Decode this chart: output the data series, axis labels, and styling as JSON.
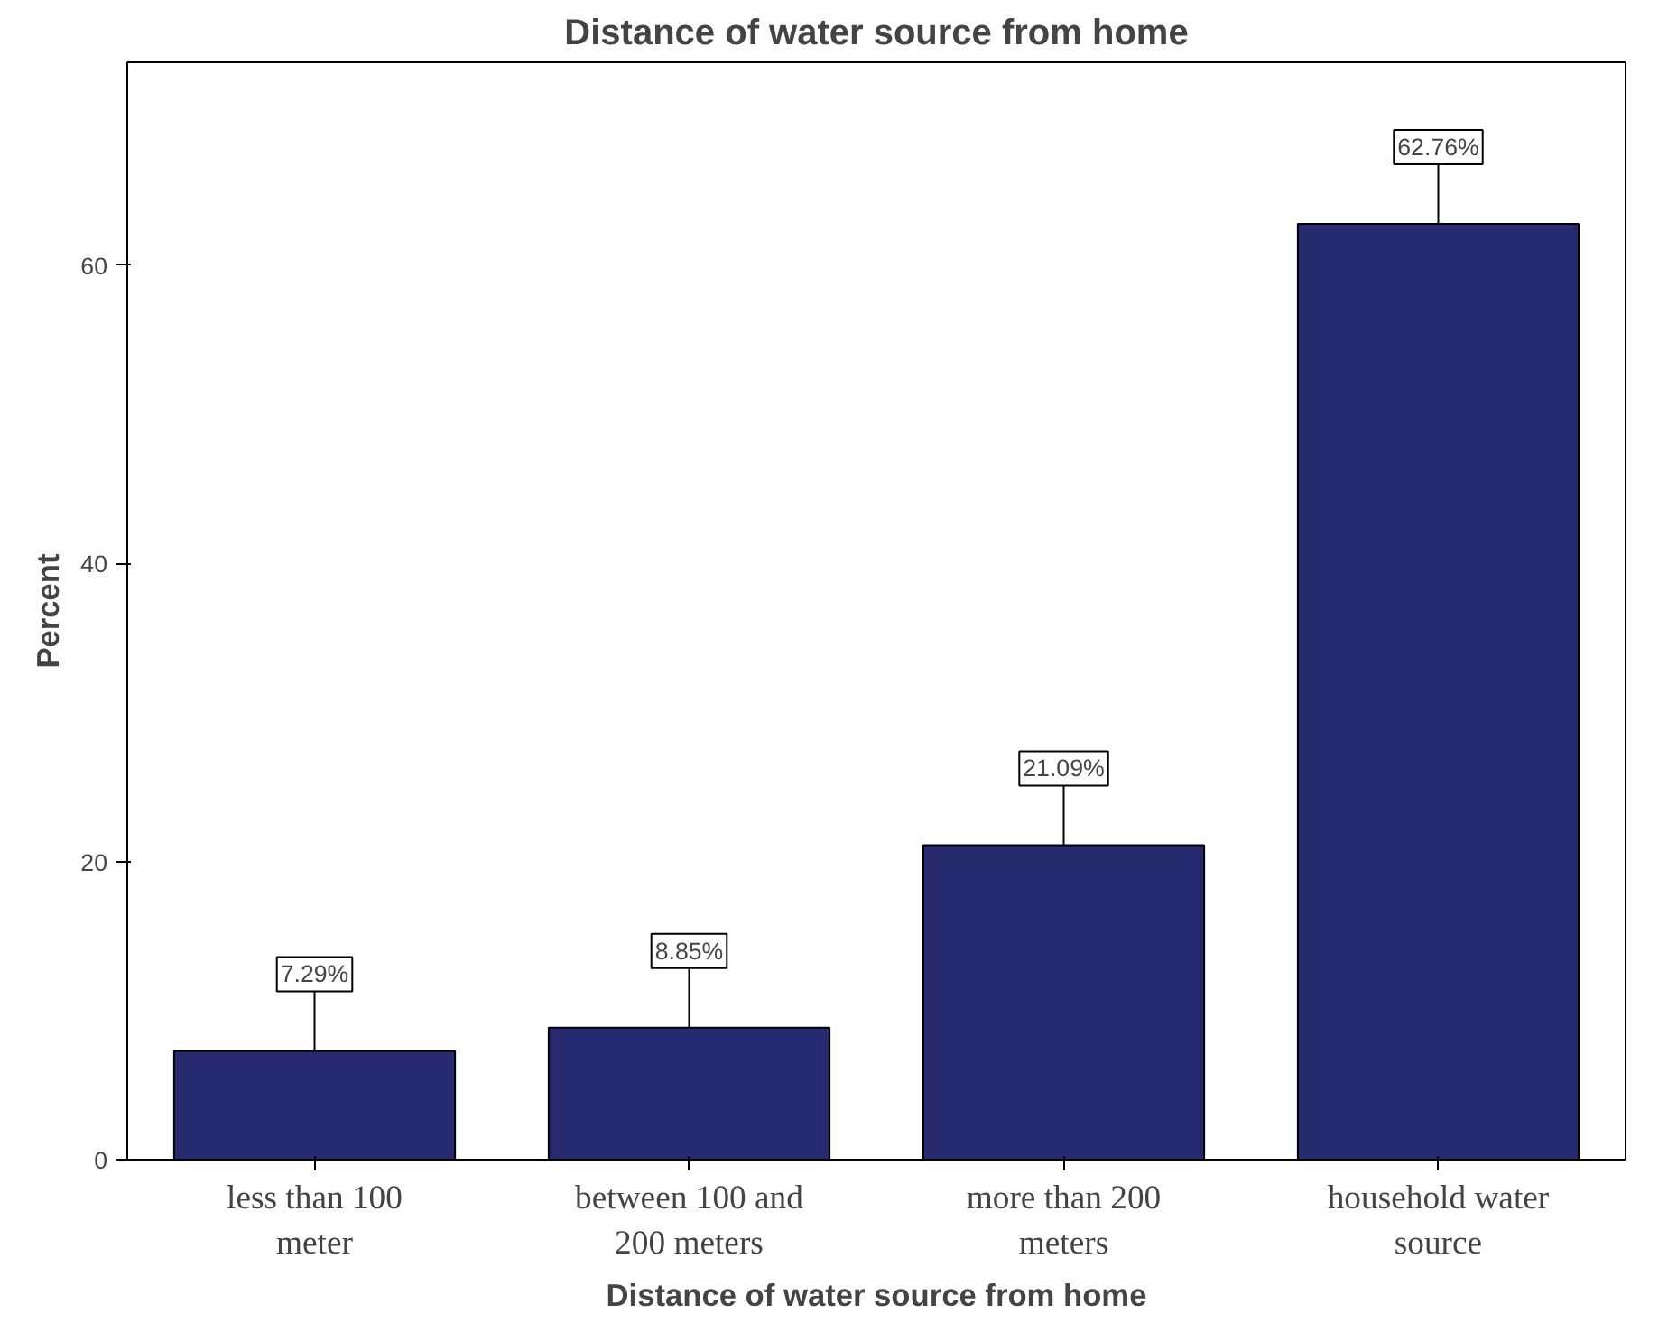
{
  "chart_data": {
    "type": "bar",
    "title": "Distance of water source from home",
    "xlabel": "Distance of water source from home",
    "ylabel": "Percent",
    "categories": [
      "less than 100 meter",
      "between 100 and 200 meters",
      "more than 200 meters",
      "household water source"
    ],
    "values": [
      7.29,
      8.85,
      21.09,
      62.76
    ],
    "value_labels": [
      "7.29%",
      "8.85%",
      "21.09%",
      "62.76%"
    ],
    "color": "#272a6e",
    "ylim": [
      0,
      73.6
    ],
    "yticks": [
      0,
      20,
      40,
      60
    ],
    "grid": false
  }
}
